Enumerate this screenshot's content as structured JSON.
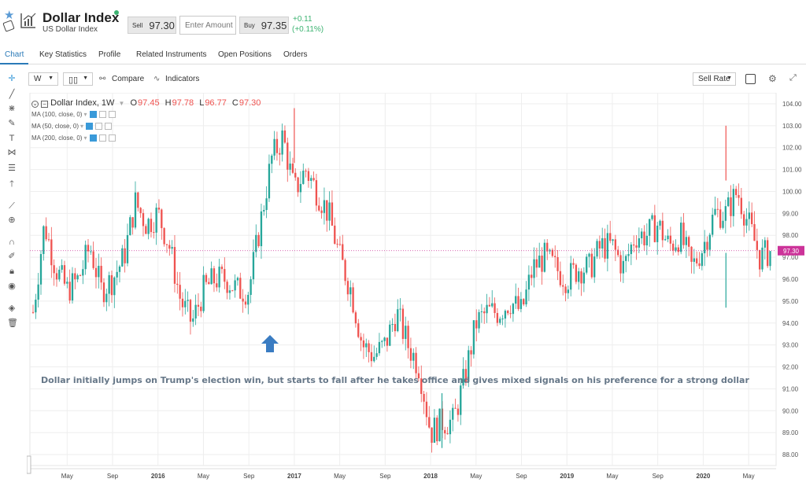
{
  "header": {
    "title": "Dollar Index",
    "subtitle": "US Dollar Index",
    "sell_label": "Sell",
    "sell_value": "97.30",
    "amount_placeholder": "Enter Amount",
    "buy_label": "Buy",
    "buy_value": "97.35",
    "change_abs": "+0.11",
    "change_pct": "(+0.11%)"
  },
  "tabs": [
    {
      "label": "Chart"
    },
    {
      "label": "Key Statistics"
    },
    {
      "label": "Profile"
    },
    {
      "label": "Related Instruments"
    },
    {
      "label": "Open Positions"
    },
    {
      "label": "Orders"
    }
  ],
  "toolbar": {
    "interval": "W",
    "compare_label": "Compare",
    "indicators_label": "Indicators",
    "rate_select": "Sell Rate"
  },
  "legend": {
    "symbol": "Dollar Index, 1W",
    "o_label": "O",
    "o_value": "97.45",
    "h_label": "H",
    "h_value": "97.78",
    "l_label": "L",
    "l_value": "96.77",
    "c_label": "C",
    "c_value": "97.30",
    "ma": [
      "MA (100, close, 0)",
      "MA (50, close, 0)",
      "MA (200, close, 0)"
    ]
  },
  "colors": {
    "up": "#26a69a",
    "down": "#ef5350",
    "accent": "#2a7ab8",
    "price_line": "#cc3399"
  },
  "chart_data": {
    "type": "candlestick",
    "annotation": "Dollar initially jumps on Trump's election win, but starts to fall after he takes office and gives mixed signals on his preference for a strong dollar",
    "current_price": 97.3,
    "current_price_label": "97.30",
    "ylim": [
      87.5,
      104.5
    ],
    "y_ticks": [
      "88.00",
      "89.00",
      "90.00",
      "91.00",
      "92.00",
      "93.00",
      "94.00",
      "95.00",
      "96.00",
      "97.00",
      "98.00",
      "99.00",
      "100.00",
      "101.00",
      "102.00",
      "103.00",
      "104.00"
    ],
    "x_ticks": [
      "May",
      "Sep",
      "2016",
      "May",
      "Sep",
      "2017",
      "May",
      "Sep",
      "2018",
      "May",
      "Sep",
      "2019",
      "May",
      "Sep",
      "2020",
      "May"
    ],
    "x_range": [
      "2015-02",
      "2020-07"
    ],
    "close_path": [
      {
        "t": "2015-02",
        "v": 94.5
      },
      {
        "t": "2015-03",
        "v": 98.5
      },
      {
        "t": "2015-04",
        "v": 96.5
      },
      {
        "t": "2015-05",
        "v": 95.5
      },
      {
        "t": "2015-06",
        "v": 96.0
      },
      {
        "t": "2015-07",
        "v": 97.5
      },
      {
        "t": "2015-08",
        "v": 95.5
      },
      {
        "t": "2015-09",
        "v": 96.0
      },
      {
        "t": "2015-10",
        "v": 97.0
      },
      {
        "t": "2015-11",
        "v": 99.5
      },
      {
        "t": "2015-12",
        "v": 98.5
      },
      {
        "t": "2016-01",
        "v": 99.0
      },
      {
        "t": "2016-02",
        "v": 97.5
      },
      {
        "t": "2016-03",
        "v": 95.0
      },
      {
        "t": "2016-04",
        "v": 94.0
      },
      {
        "t": "2016-05",
        "v": 95.5
      },
      {
        "t": "2016-06",
        "v": 96.0
      },
      {
        "t": "2016-07",
        "v": 96.0
      },
      {
        "t": "2016-08",
        "v": 95.5
      },
      {
        "t": "2016-09",
        "v": 95.5
      },
      {
        "t": "2016-10",
        "v": 98.5
      },
      {
        "t": "2016-11",
        "v": 101.5
      },
      {
        "t": "2016-12",
        "v": 102.5
      },
      {
        "t": "2017-01",
        "v": 100.0
      },
      {
        "t": "2017-02",
        "v": 101.0
      },
      {
        "t": "2017-03",
        "v": 100.0
      },
      {
        "t": "2017-04",
        "v": 99.0
      },
      {
        "t": "2017-05",
        "v": 97.0
      },
      {
        "t": "2017-06",
        "v": 95.5
      },
      {
        "t": "2017-07",
        "v": 93.0
      },
      {
        "t": "2017-08",
        "v": 92.5
      },
      {
        "t": "2017-09",
        "v": 93.0
      },
      {
        "t": "2017-10",
        "v": 94.5
      },
      {
        "t": "2017-11",
        "v": 93.0
      },
      {
        "t": "2017-12",
        "v": 92.0
      },
      {
        "t": "2018-01",
        "v": 89.0
      },
      {
        "t": "2018-02",
        "v": 89.5
      },
      {
        "t": "2018-03",
        "v": 89.5
      },
      {
        "t": "2018-04",
        "v": 91.5
      },
      {
        "t": "2018-05",
        "v": 94.0
      },
      {
        "t": "2018-06",
        "v": 94.5
      },
      {
        "t": "2018-07",
        "v": 94.5
      },
      {
        "t": "2018-08",
        "v": 95.0
      },
      {
        "t": "2018-09",
        "v": 94.5
      },
      {
        "t": "2018-10",
        "v": 96.5
      },
      {
        "t": "2018-11",
        "v": 97.0
      },
      {
        "t": "2018-12",
        "v": 96.5
      },
      {
        "t": "2019-01",
        "v": 96.0
      },
      {
        "t": "2019-02",
        "v": 96.5
      },
      {
        "t": "2019-03",
        "v": 96.5
      },
      {
        "t": "2019-04",
        "v": 97.5
      },
      {
        "t": "2019-05",
        "v": 97.5
      },
      {
        "t": "2019-06",
        "v": 96.5
      },
      {
        "t": "2019-07",
        "v": 98.0
      },
      {
        "t": "2019-08",
        "v": 98.0
      },
      {
        "t": "2019-09",
        "v": 98.5
      },
      {
        "t": "2019-10",
        "v": 97.5
      },
      {
        "t": "2019-11",
        "v": 98.0
      },
      {
        "t": "2019-12",
        "v": 96.5
      },
      {
        "t": "2020-01",
        "v": 97.5
      },
      {
        "t": "2020-02",
        "v": 99.0
      },
      {
        "t": "2020-03",
        "v": 99.0
      },
      {
        "t": "2020-04",
        "v": 100.0
      },
      {
        "t": "2020-05",
        "v": 98.5
      },
      {
        "t": "2020-06",
        "v": 97.0
      },
      {
        "t": "2020-07",
        "v": 97.3
      }
    ],
    "peaks": [
      {
        "t": "2017-01",
        "high": 103.8
      },
      {
        "t": "2018-02",
        "low": 88.3
      },
      {
        "t": "2020-03",
        "high": 103.0,
        "low": 94.7
      }
    ]
  }
}
